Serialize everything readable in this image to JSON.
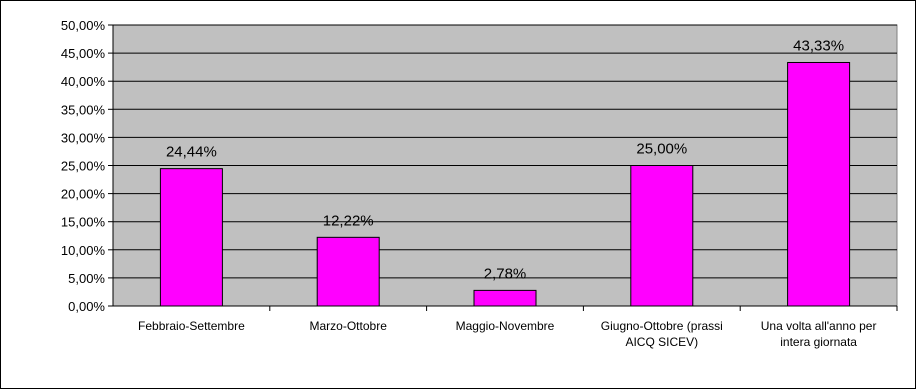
{
  "chart_data": {
    "type": "bar",
    "title": "",
    "xlabel": "",
    "ylabel": "",
    "categories": [
      [
        "Febbraio-Settembre"
      ],
      [
        "Marzo-Ottobre"
      ],
      [
        "Maggio-Novembre"
      ],
      [
        "Giugno-Ottobre (prassi",
        "AICQ SICEV)"
      ],
      [
        "Una volta all'anno per",
        "intera giornata"
      ]
    ],
    "values": [
      24.44,
      12.22,
      2.78,
      25.0,
      43.33
    ],
    "data_labels": [
      "24,44%",
      "12,22%",
      "2,78%",
      "25,00%",
      "43,33%"
    ],
    "ylim": [
      0,
      50
    ],
    "y_ticks": [
      "0,00%",
      "5,00%",
      "10,00%",
      "15,00%",
      "20,00%",
      "25,00%",
      "30,00%",
      "35,00%",
      "40,00%",
      "45,00%",
      "50,00%"
    ],
    "y_tick_values": [
      0,
      5,
      10,
      15,
      20,
      25,
      30,
      35,
      40,
      45,
      50
    ],
    "grid": true,
    "legend": "none",
    "colors": {
      "bar_fill": "#ff00ff",
      "bar_stroke": "#000000",
      "plot_background": "#c0c0c0",
      "gridline": "#000000"
    }
  }
}
